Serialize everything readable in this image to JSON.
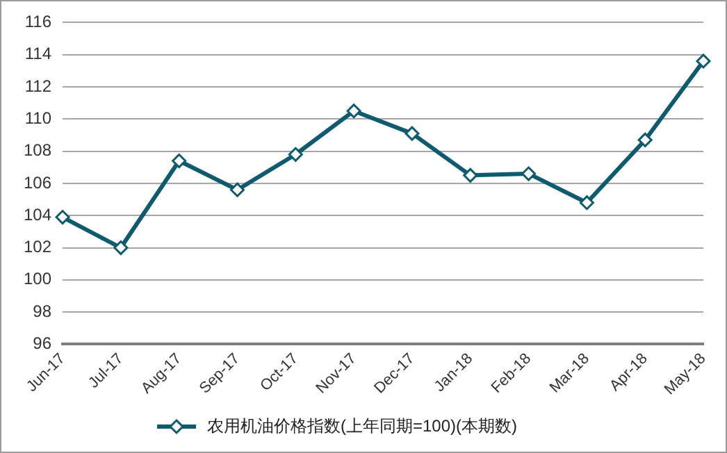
{
  "chart_data": {
    "type": "line",
    "categories": [
      "Jun-17",
      "Jul-17",
      "Aug-17",
      "Sep-17",
      "Oct-17",
      "Nov-17",
      "Dec-17",
      "Jan-18",
      "Feb-18",
      "Mar-18",
      "Apr-18",
      "May-18"
    ],
    "series": [
      {
        "name": "农用机油价格指数(上年同期=100)(本期数)",
        "color": "#0e5a6e",
        "values": [
          103.9,
          102.0,
          107.4,
          105.6,
          107.8,
          110.5,
          109.1,
          106.5,
          106.6,
          104.8,
          108.7,
          113.6
        ]
      }
    ],
    "ylim": [
      96,
      116
    ],
    "yticks": [
      96,
      98,
      100,
      102,
      104,
      106,
      108,
      110,
      112,
      114,
      116
    ],
    "grid": "y",
    "legend": "bottom",
    "marker": "diamond",
    "line_style": "solid"
  }
}
